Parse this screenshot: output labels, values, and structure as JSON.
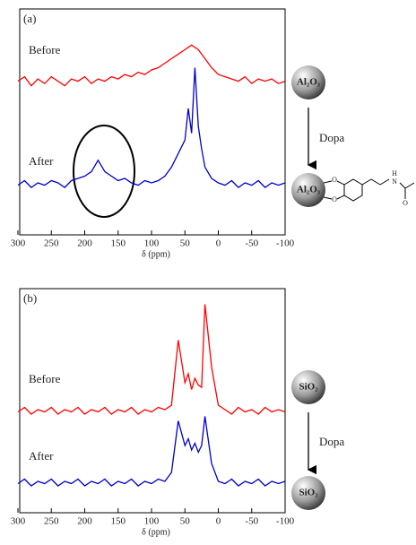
{
  "chart_data": [
    {
      "type": "line",
      "panel_label": "(a)",
      "xlabel": "δ (ppm)",
      "xlim": [
        300,
        -100
      ],
      "xticks": [
        300,
        250,
        200,
        150,
        100,
        50,
        0,
        -50,
        -100
      ],
      "ylim": [
        0,
        100
      ],
      "x": [
        300,
        290,
        280,
        270,
        260,
        250,
        240,
        230,
        220,
        210,
        200,
        190,
        180,
        170,
        160,
        150,
        140,
        130,
        120,
        110,
        100,
        90,
        80,
        70,
        60,
        50,
        45,
        40,
        35,
        30,
        25,
        20,
        10,
        0,
        -10,
        -20,
        -30,
        -40,
        -50,
        -60,
        -70,
        -80,
        -90,
        -100
      ],
      "series": [
        {
          "name": "Before",
          "color": "#ff0000",
          "values": [
            68,
            70,
            66,
            69,
            67,
            70,
            68,
            66,
            69,
            68,
            70,
            67,
            69,
            68,
            70,
            69,
            71,
            70,
            72,
            71,
            73,
            74,
            76,
            78,
            80,
            82,
            83,
            84,
            83,
            82,
            80,
            78,
            74,
            71,
            70,
            69,
            68,
            70,
            67,
            69,
            68,
            69,
            67,
            68
          ]
        },
        {
          "name": "After",
          "color": "#0000cc",
          "values": [
            22,
            24,
            21,
            23,
            22,
            24,
            23,
            21,
            24,
            25,
            26,
            28,
            33,
            28,
            26,
            24,
            25,
            23,
            22,
            24,
            23,
            24,
            26,
            30,
            36,
            42,
            56,
            45,
            74,
            48,
            38,
            30,
            25,
            23,
            22,
            24,
            21,
            23,
            22,
            24,
            21,
            23,
            22,
            23
          ]
        }
      ],
      "annotations": {
        "particle_before": "Al₂O₃",
        "arrow_label": "Dopa",
        "particle_after": "Al₂O₃",
        "molecule_atoms": [
          "O",
          "O",
          "H",
          "N",
          "O"
        ]
      }
    },
    {
      "type": "line",
      "panel_label": "(b)",
      "xlabel": "δ (ppm)",
      "xlim": [
        300,
        -100
      ],
      "xticks": [
        300,
        250,
        200,
        150,
        100,
        50,
        0,
        -50,
        -100
      ],
      "ylim": [
        0,
        100
      ],
      "x": [
        300,
        290,
        280,
        270,
        260,
        250,
        240,
        230,
        220,
        210,
        200,
        190,
        180,
        170,
        160,
        150,
        140,
        130,
        120,
        110,
        100,
        90,
        80,
        70,
        60,
        50,
        45,
        40,
        35,
        30,
        25,
        20,
        10,
        0,
        -10,
        -20,
        -30,
        -40,
        -50,
        -60,
        -70,
        -80,
        -90,
        -100
      ],
      "series": [
        {
          "name": "Before",
          "color": "#ff0000",
          "values": [
            45,
            47,
            44,
            46,
            45,
            47,
            44,
            46,
            45,
            47,
            44,
            46,
            45,
            47,
            44,
            46,
            45,
            47,
            44,
            46,
            45,
            47,
            46,
            48,
            77,
            58,
            62,
            55,
            60,
            57,
            56,
            93,
            65,
            48,
            46,
            44,
            47,
            45,
            46,
            44,
            47,
            45,
            46,
            45
          ]
        },
        {
          "name": "After",
          "color": "#0000cc",
          "values": [
            13,
            15,
            12,
            14,
            13,
            15,
            12,
            14,
            13,
            15,
            12,
            14,
            13,
            15,
            12,
            14,
            13,
            15,
            12,
            14,
            13,
            15,
            14,
            18,
            41,
            30,
            33,
            28,
            31,
            27,
            30,
            43,
            22,
            14,
            13,
            15,
            12,
            14,
            13,
            15,
            12,
            14,
            13,
            14
          ]
        }
      ],
      "annotations": {
        "particle_before": "SiO₂",
        "arrow_label": "Dopa",
        "particle_after": "SiO₂"
      }
    }
  ]
}
